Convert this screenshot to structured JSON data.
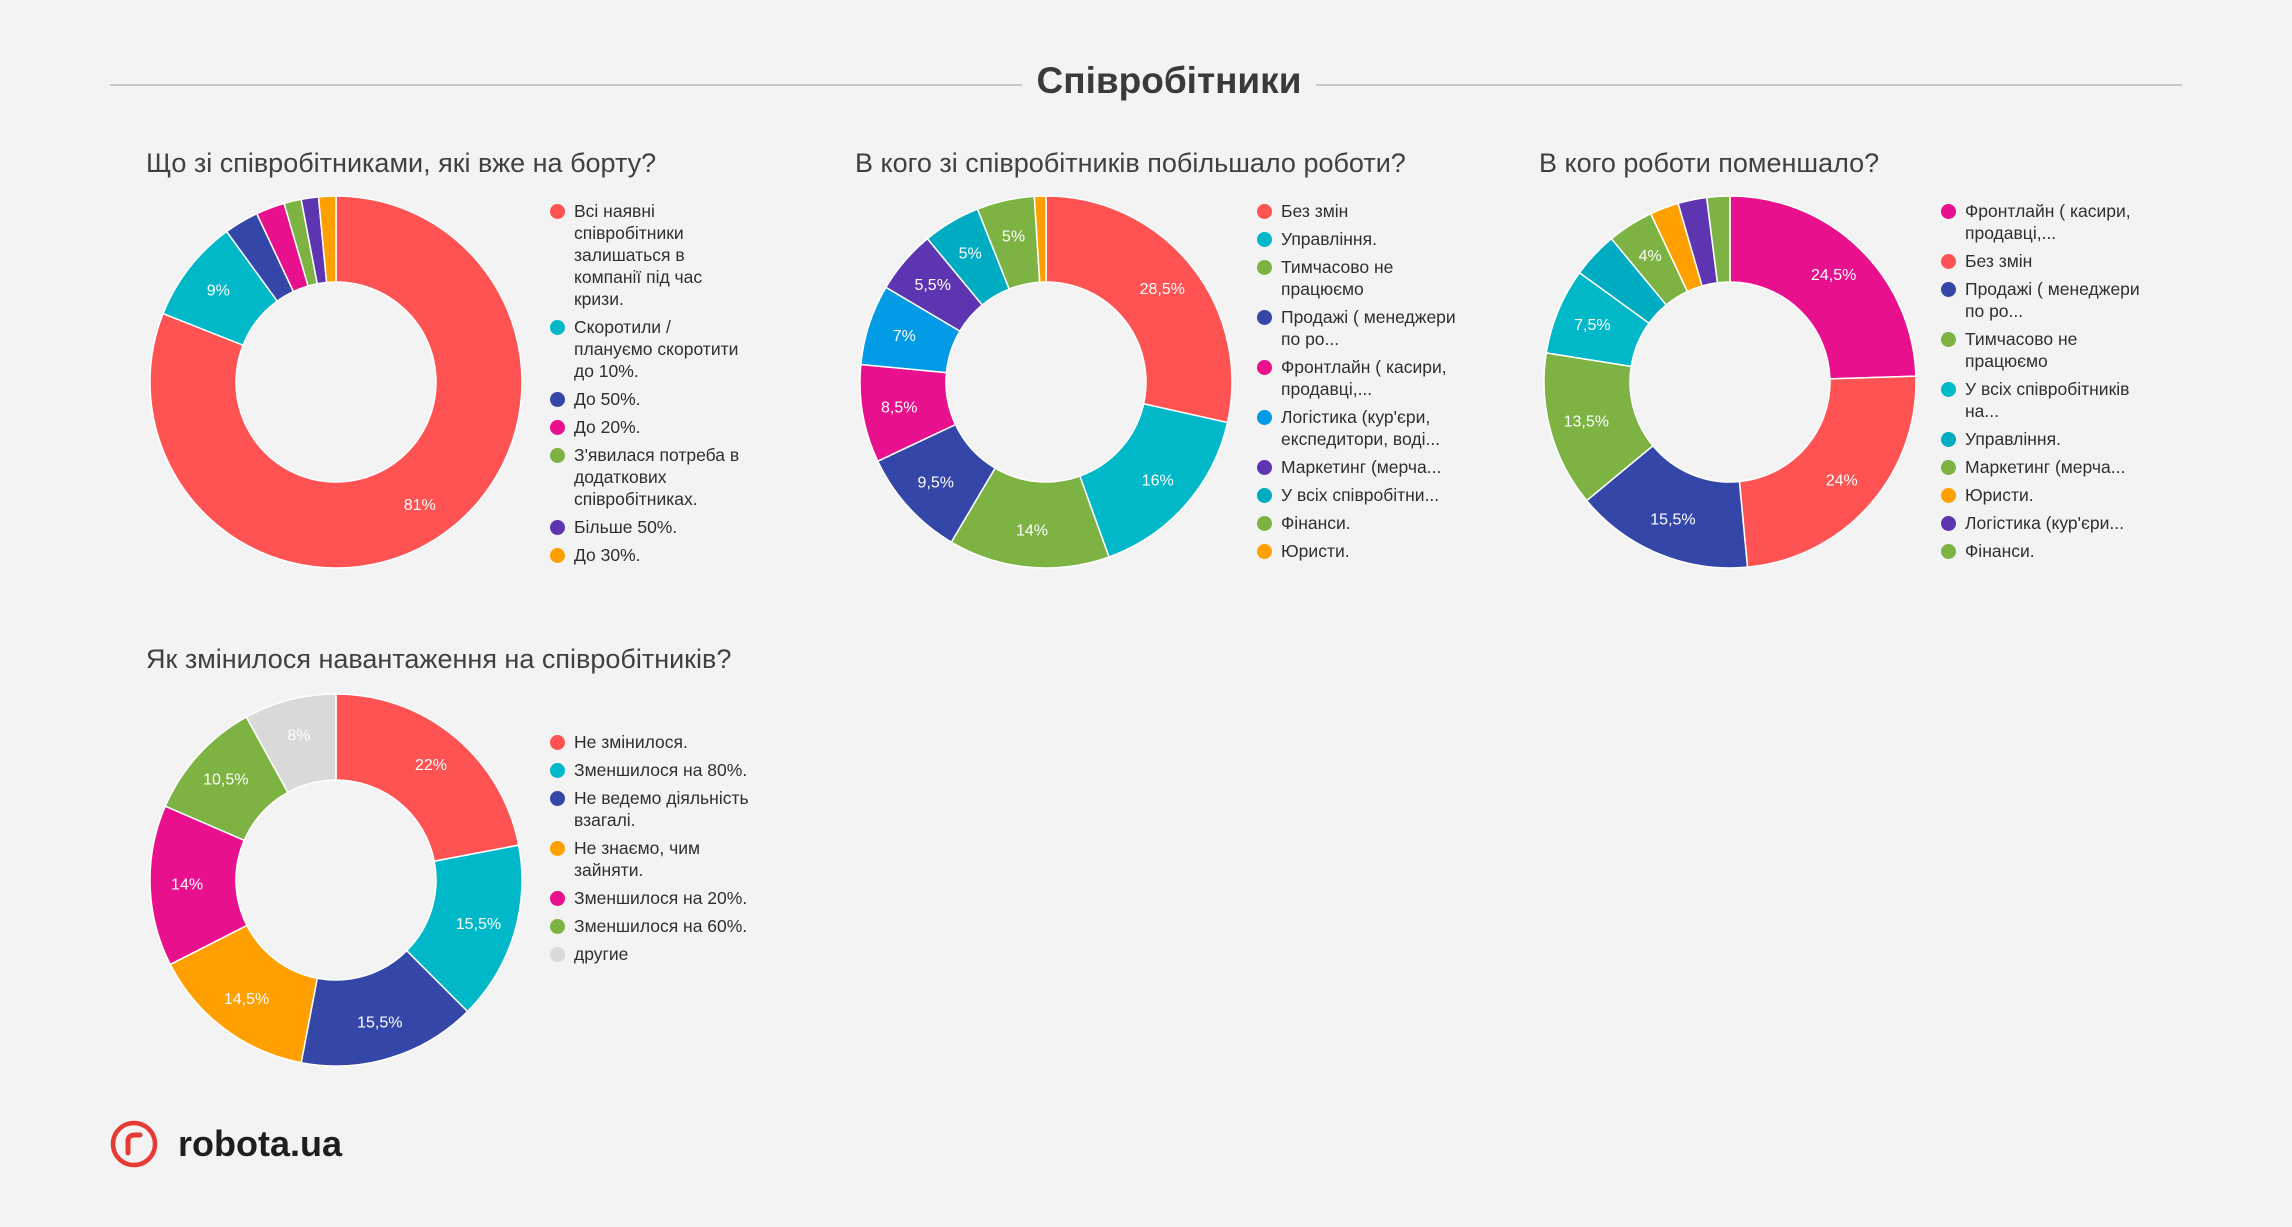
{
  "header": {
    "title": "Співробітники"
  },
  "logo": {
    "text": "robota.ua",
    "accent": "#e63a35"
  },
  "chart_data": [
    {
      "type": "pie",
      "title": "Що зі співробітниками, які вже на борту?",
      "slices": [
        {
          "label": "Всі наявні співробітники залишаться в компанії під час кризи.",
          "value": 81,
          "display": "81%",
          "color": "#ff5252"
        },
        {
          "label": "Скоротили / плануємо скоротити до 10%.",
          "value": 9,
          "display": "9%",
          "color": "#00b8c8"
        },
        {
          "label": "До 50%.",
          "value": 3,
          "display": "",
          "color": "#3447a8"
        },
        {
          "label": "До 20%.",
          "value": 2.5,
          "display": "",
          "color": "#e8108c"
        },
        {
          "label": "З'явилася потреба в додаткових співробітниках.",
          "value": 1.5,
          "display": "",
          "color": "#7cb342"
        },
        {
          "label": "Більше 50%.",
          "value": 1.5,
          "display": "",
          "color": "#5e35b1"
        },
        {
          "label": "До 30%.",
          "value": 1.5,
          "display": "",
          "color": "#ffa000"
        }
      ]
    },
    {
      "type": "pie",
      "title": "В кого зі співробітників побільшало роботи?",
      "slices": [
        {
          "label": "Без змін",
          "value": 28.5,
          "display": "28,5%",
          "color": "#ff5252"
        },
        {
          "label": "Управління.",
          "value": 16,
          "display": "16%",
          "color": "#00b8c8"
        },
        {
          "label": "Тимчасово не працюємо",
          "value": 14,
          "display": "14%",
          "color": "#7cb342"
        },
        {
          "label": "Продажі ( менеджери по ро...",
          "value": 9.5,
          "display": "9,5%",
          "color": "#3447a8"
        },
        {
          "label": "Фронтлайн ( касири, продавці,...",
          "value": 8.5,
          "display": "8,5%",
          "color": "#e8108c"
        },
        {
          "label": "Логістика (кур'єри, експедитори, воді...",
          "value": 7,
          "display": "7%",
          "color": "#039be5"
        },
        {
          "label": "Маркетинг (мерча...",
          "value": 5.5,
          "display": "5,5%",
          "color": "#5e35b1"
        },
        {
          "label": "У всіх співробітни...",
          "value": 5,
          "display": "5%",
          "color": "#00acc1"
        },
        {
          "label": "Фінанси.",
          "value": 5,
          "display": "5%",
          "color": "#7cb342"
        },
        {
          "label": "Юристи.",
          "value": 1,
          "display": "",
          "color": "#ffa000"
        }
      ]
    },
    {
      "type": "pie",
      "title": "В кого роботи поменшало?",
      "slices": [
        {
          "label": "Фронтлайн ( касири, продавці,...",
          "value": 24.5,
          "display": "24,5%",
          "color": "#e8108c"
        },
        {
          "label": "Без змін",
          "value": 24,
          "display": "24%",
          "color": "#ff5252"
        },
        {
          "label": "Продажі ( менеджери по ро...",
          "value": 15.5,
          "display": "15,5%",
          "color": "#3447a8"
        },
        {
          "label": "Тимчасово не працюємо",
          "value": 13.5,
          "display": "13,5%",
          "color": "#7cb342"
        },
        {
          "label": "У всіх співробітників на...",
          "value": 7.5,
          "display": "7,5%",
          "color": "#00b8c8"
        },
        {
          "label": "Управління.",
          "value": 4,
          "display": "",
          "color": "#00acc1"
        },
        {
          "label": "Маркетинг (мерча...",
          "value": 4,
          "display": "4%",
          "color": "#7cb342"
        },
        {
          "label": "Юристи.",
          "value": 2.5,
          "display": "",
          "color": "#ffa000"
        },
        {
          "label": "Логістика (кур'єри...",
          "value": 2.5,
          "display": "",
          "color": "#5e35b1"
        },
        {
          "label": "Фінанси.",
          "value": 2,
          "display": "",
          "color": "#7cb342"
        }
      ]
    },
    {
      "type": "pie",
      "title": "Як змінилося навантаження на співробітників?",
      "slices": [
        {
          "label": "Не змінилося.",
          "value": 22,
          "display": "22%",
          "color": "#ff5252"
        },
        {
          "label": "Зменшилося на 80%.",
          "value": 15.5,
          "display": "15,5%",
          "color": "#00b8c8"
        },
        {
          "label": "Не ведемо діяльність взагалі.",
          "value": 15.5,
          "display": "15,5%",
          "color": "#3447a8"
        },
        {
          "label": "Не знаємо, чим зайняти.",
          "value": 14.5,
          "display": "14,5%",
          "color": "#ffa000"
        },
        {
          "label": "Зменшилося на 20%.",
          "value": 14,
          "display": "14%",
          "color": "#e8108c"
        },
        {
          "label": "Зменшилося на 60%.",
          "value": 10.5,
          "display": "10,5%",
          "color": "#7cb342"
        },
        {
          "label": "другие",
          "value": 8,
          "display": "8%",
          "color": "#d9d9d9"
        }
      ]
    }
  ]
}
